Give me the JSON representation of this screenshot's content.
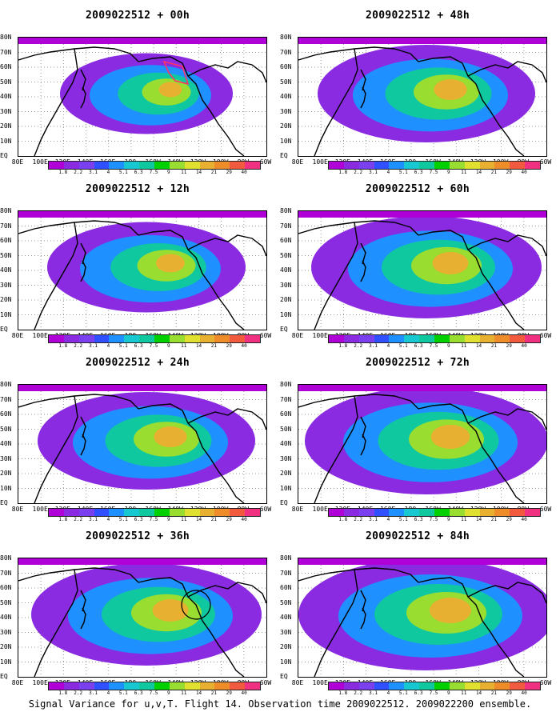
{
  "chart_data": [
    {
      "type": "heatmap",
      "title": "2009022512 + 00h",
      "lead_hours": 0
    },
    {
      "type": "heatmap",
      "title": "2009022512 + 48h",
      "lead_hours": 48
    },
    {
      "type": "heatmap",
      "title": "2009022512 + 12h",
      "lead_hours": 12
    },
    {
      "type": "heatmap",
      "title": "2009022512 + 60h",
      "lead_hours": 60
    },
    {
      "type": "heatmap",
      "title": "2009022512 + 24h",
      "lead_hours": 24
    },
    {
      "type": "heatmap",
      "title": "2009022512 + 72h",
      "lead_hours": 72
    },
    {
      "type": "heatmap",
      "title": "2009022512 + 36h",
      "lead_hours": 36
    },
    {
      "type": "heatmap",
      "title": "2009022512 + 84h",
      "lead_hours": 84
    }
  ],
  "axes": {
    "x_ticks": [
      "80E",
      "100E",
      "120E",
      "140E",
      "160E",
      "180",
      "160W",
      "140W",
      "120W",
      "100W",
      "80W",
      "60W"
    ],
    "y_ticks": [
      "80N",
      "70N",
      "60N",
      "50N",
      "40N",
      "30N",
      "20N",
      "10N",
      "EQ"
    ]
  },
  "colorbar": {
    "levels": [
      "1.8",
      "2.2",
      "3.1",
      "4",
      "5.1",
      "6.3",
      "7.5",
      "9",
      "11",
      "14",
      "21",
      "29",
      "40"
    ],
    "colors": [
      "#b000d8",
      "#8a2be2",
      "#7a40f0",
      "#3050ff",
      "#1f90ff",
      "#17c8d0",
      "#10c8a0",
      "#00d000",
      "#98dd30",
      "#dfe030",
      "#e8b030",
      "#ee8c2a",
      "#f25a40",
      "#f03080"
    ]
  },
  "caption": "Signal Variance for u,v,T. Flight 14. Observation time 2009022512. 2009022200 ensemble."
}
